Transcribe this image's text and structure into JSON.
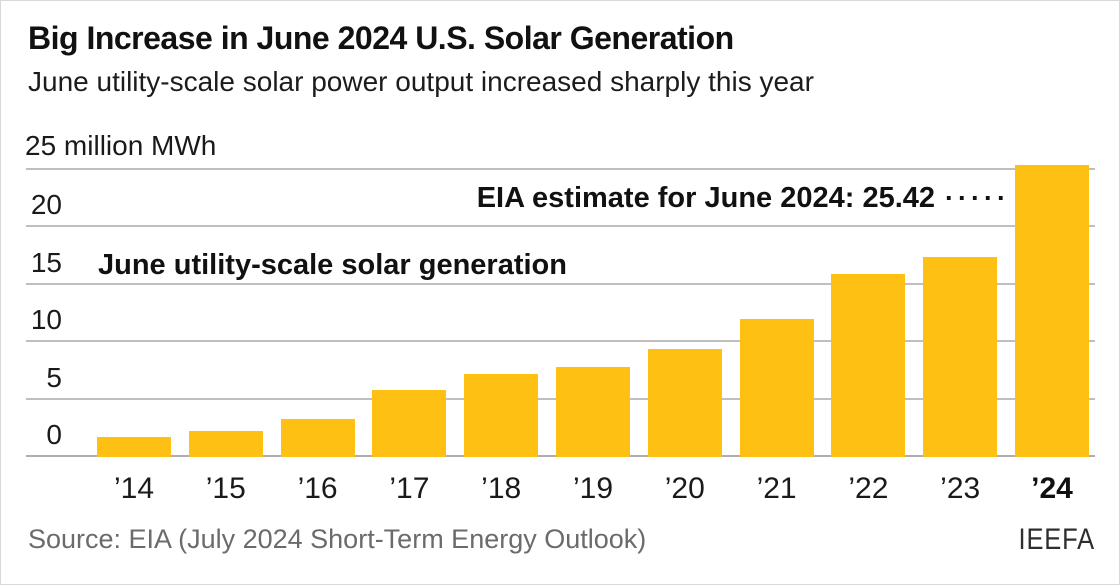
{
  "header": {
    "title": "Big Increase in June 2024 U.S. Solar Generation",
    "subtitle": "June utility-scale solar power output increased sharply this year"
  },
  "chart_data": {
    "type": "bar",
    "title": "Big Increase in June 2024 U.S. Solar Generation",
    "subtitle": "June utility-scale solar power output increased sharply this year",
    "categories": [
      "’14",
      "’15",
      "’16",
      "’17",
      "’18",
      "’19",
      "’20",
      "’21",
      "’22",
      "’23",
      "’24"
    ],
    "values": [
      1.7,
      2.3,
      3.3,
      5.8,
      7.2,
      7.8,
      9.4,
      12.0,
      15.9,
      17.4,
      25.42
    ],
    "xlabel": "",
    "ylabel": "million MWh",
    "ylim": [
      0,
      25
    ],
    "yticks": [
      0,
      5,
      10,
      15,
      20
    ],
    "top_tick_label": "25 million MWh",
    "grid": "horizontal",
    "legend_position": "none",
    "bar_color": "#FDC013",
    "gridline_color": "#bfbfbf",
    "emphasized_category": "’24",
    "annotations": {
      "estimate_label": "EIA estimate for June 2024: 25.42",
      "estimate_leader": "·····",
      "estimate_value": 25.42,
      "series_label": "June utility-scale solar generation"
    }
  },
  "footer": {
    "source": "Source: EIA (July 2024 Short-Term Energy Outlook)",
    "brand": "IEEFA"
  }
}
